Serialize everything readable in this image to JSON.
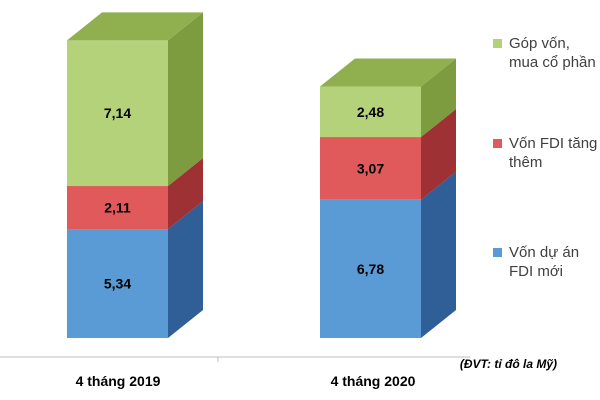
{
  "chart_data": {
    "type": "bar",
    "stacked": true,
    "categories": [
      "4 tháng 2019",
      "4 tháng 2020"
    ],
    "series": [
      {
        "name": "Vốn dự án FDI mới",
        "values": [
          5.34,
          6.78
        ],
        "labels": [
          "5,34",
          "6,78"
        ]
      },
      {
        "name": "Vốn FDI tăng thêm",
        "values": [
          2.11,
          3.07
        ],
        "labels": [
          "2,11",
          "3,07"
        ]
      },
      {
        "name": "Góp vốn, mua cổ phần",
        "values": [
          7.14,
          2.48
        ],
        "labels": [
          "7,14",
          "2,48"
        ]
      }
    ],
    "unit_note": "(ĐVT: tỉ đô la Mỹ)",
    "ylim": [
      0,
      15
    ],
    "grid": false,
    "legend_position": "right"
  },
  "colors": {
    "series_front": [
      "#5b9bd5",
      "#e05a5c",
      "#b4d27a"
    ],
    "series_side": [
      "#2f5f96",
      "#9e3134",
      "#7d9b3f"
    ],
    "series_top": [
      "#3d6fa8",
      "#b84043",
      "#90b050"
    ]
  }
}
